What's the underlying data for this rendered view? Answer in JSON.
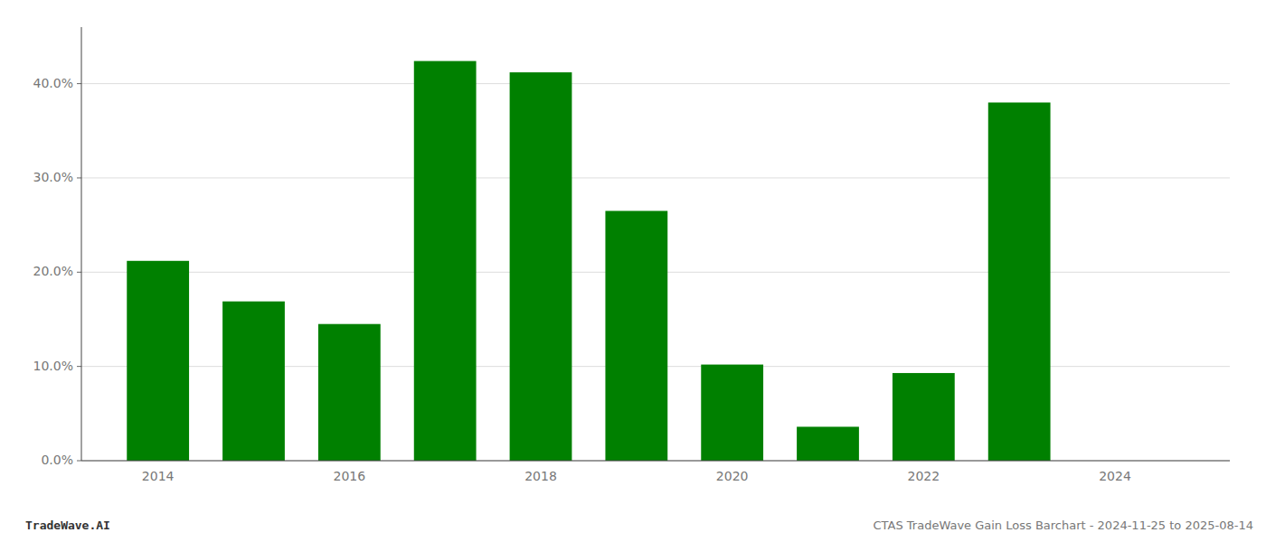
{
  "chart_data": {
    "type": "bar",
    "x": [
      2014,
      2015,
      2016,
      2017,
      2018,
      2019,
      2020,
      2021,
      2022,
      2023
    ],
    "values": [
      0.212,
      0.169,
      0.145,
      0.424,
      0.412,
      0.265,
      0.102,
      0.036,
      0.093,
      0.38
    ],
    "color": "#008000",
    "xlim": [
      2013.2,
      2025.2
    ],
    "xticks": [
      2014,
      2016,
      2018,
      2020,
      2022,
      2024
    ],
    "ylim": [
      0,
      0.46
    ],
    "yticks": [
      {
        "value": 0.0,
        "label": "0.0%"
      },
      {
        "value": 0.1,
        "label": "10.0%"
      },
      {
        "value": 0.2,
        "label": "20.0%"
      },
      {
        "value": 0.3,
        "label": "30.0%"
      },
      {
        "value": 0.4,
        "label": "40.0%"
      }
    ],
    "grid": true,
    "annotations": [
      "TradeWave.AI",
      "CTAS TradeWave Gain Loss Barchart - 2024-11-25 to 2025-08-14"
    ]
  }
}
